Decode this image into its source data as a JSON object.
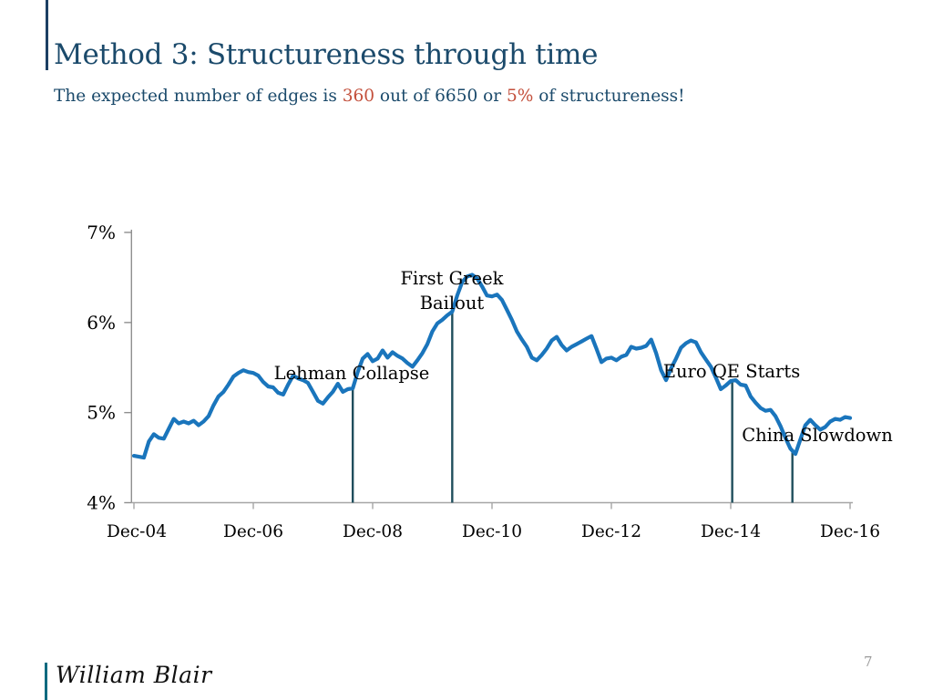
{
  "slide": {
    "title": "Method 3: Structureness through time",
    "subtitle": {
      "part1": "The expected number of edges is ",
      "highlight1": "360",
      "part2": " out of 6650 or ",
      "highlight2": "5%",
      "part3": " of structureness!"
    },
    "logo_text": "William Blair",
    "page_number": "7"
  },
  "colors": {
    "title_navy": "#1b4a6b",
    "accent_red": "#c3503c",
    "line_blue": "#1a75bc",
    "annotation_line": "#1f4e5c",
    "y_axis_gray": "#8f8f8f",
    "x_axis_gray": "#a6a6a6",
    "top_bar_navy": "#1c3f63",
    "footer_bar_teal": "#0c6a80",
    "page_number_gray": "#9b9b9b"
  },
  "chart_data": {
    "type": "line",
    "title": "",
    "xlabel": "",
    "ylabel": "",
    "frequency": "monthly",
    "x_start_label": "Dec-04",
    "x_end_label": "Dec-16",
    "x_tick_labels": [
      "Dec-04",
      "Dec-06",
      "Dec-08",
      "Dec-10",
      "Dec-12",
      "Dec-14",
      "Dec-16"
    ],
    "x_tick_months": [
      0,
      24,
      48,
      72,
      96,
      120,
      144
    ],
    "y_tick_labels": [
      "4%",
      "5%",
      "6%",
      "7%"
    ],
    "y_ticks": [
      4,
      5,
      6,
      7
    ],
    "ylim": [
      4,
      7
    ],
    "grid": false,
    "legend": "none",
    "series_name": "Structureness",
    "values_pct": [
      4.52,
      4.51,
      4.5,
      4.68,
      4.76,
      4.72,
      4.71,
      4.82,
      4.93,
      4.88,
      4.9,
      4.88,
      4.91,
      4.86,
      4.9,
      4.96,
      5.08,
      5.18,
      5.23,
      5.31,
      5.4,
      5.44,
      5.47,
      5.45,
      5.44,
      5.41,
      5.34,
      5.29,
      5.28,
      5.22,
      5.2,
      5.31,
      5.41,
      5.38,
      5.36,
      5.33,
      5.23,
      5.13,
      5.1,
      5.17,
      5.23,
      5.32,
      5.23,
      5.26,
      5.27,
      5.45,
      5.6,
      5.65,
      5.57,
      5.6,
      5.69,
      5.61,
      5.67,
      5.63,
      5.6,
      5.55,
      5.51,
      5.58,
      5.66,
      5.76,
      5.9,
      5.99,
      6.03,
      6.08,
      6.12,
      6.3,
      6.45,
      6.51,
      6.53,
      6.49,
      6.4,
      6.3,
      6.29,
      6.31,
      6.25,
      6.14,
      6.03,
      5.9,
      5.81,
      5.73,
      5.61,
      5.58,
      5.64,
      5.71,
      5.8,
      5.84,
      5.75,
      5.69,
      5.73,
      5.76,
      5.79,
      5.82,
      5.85,
      5.71,
      5.56,
      5.6,
      5.61,
      5.58,
      5.62,
      5.64,
      5.73,
      5.71,
      5.72,
      5.74,
      5.81,
      5.66,
      5.47,
      5.36,
      5.49,
      5.6,
      5.72,
      5.77,
      5.8,
      5.78,
      5.67,
      5.59,
      5.51,
      5.39,
      5.26,
      5.3,
      5.35,
      5.36,
      5.31,
      5.3,
      5.18,
      5.11,
      5.05,
      5.02,
      5.03,
      4.96,
      4.85,
      4.72,
      4.6,
      4.54,
      4.7,
      4.86,
      4.92,
      4.86,
      4.81,
      4.84,
      4.9,
      4.93,
      4.92,
      4.95,
      4.94
    ],
    "annotations": [
      {
        "id": "lehman",
        "lines": [
          "Lehman Collapse"
        ],
        "month": 44,
        "value_pct": 5.27
      },
      {
        "id": "greek",
        "lines": [
          "First Greek",
          "Bailout"
        ],
        "month": 64,
        "value_pct": 6.12
      },
      {
        "id": "euroqe",
        "lines": [
          "Euro QE Starts"
        ],
        "month": 120.3,
        "value_pct": 5.35
      },
      {
        "id": "china",
        "lines": [
          "China Slowdown"
        ],
        "month": 132.4,
        "value_pct": 4.56
      }
    ]
  }
}
